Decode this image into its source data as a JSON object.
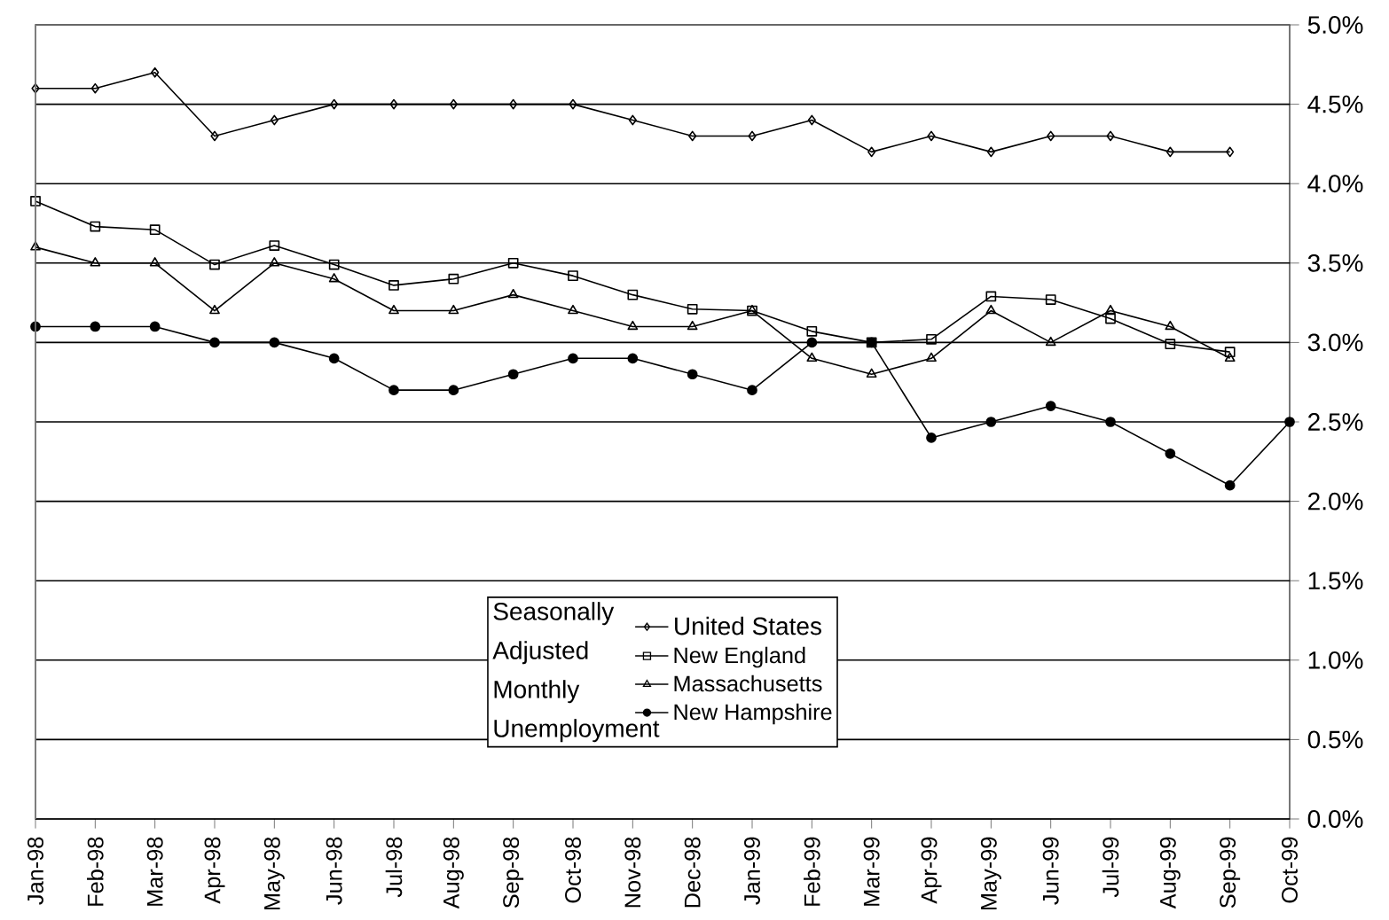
{
  "chart_data": {
    "type": "line",
    "categories": [
      "Jan-98",
      "Feb-98",
      "Mar-98",
      "Apr-98",
      "May-98",
      "Jun-98",
      "Jul-98",
      "Aug-98",
      "Sep-98",
      "Oct-98",
      "Nov-98",
      "Dec-98",
      "Jan-99",
      "Feb-99",
      "Mar-99",
      "Apr-99",
      "May-99",
      "Jun-99",
      "Jul-99",
      "Aug-99",
      "Sep-99",
      "Oct-99"
    ],
    "series": [
      {
        "name": "United States",
        "color": "#000000",
        "marker": "diamond",
        "values": [
          4.6,
          4.6,
          4.7,
          4.3,
          4.4,
          4.5,
          4.5,
          4.5,
          4.5,
          4.5,
          4.4,
          4.3,
          4.3,
          4.4,
          4.2,
          4.3,
          4.2,
          4.3,
          4.3,
          4.2,
          4.2,
          null
        ]
      },
      {
        "name": "New England",
        "color": "#000000",
        "marker": "square",
        "values": [
          3.89,
          3.73,
          3.71,
          3.49,
          3.61,
          3.49,
          3.36,
          3.4,
          3.5,
          3.42,
          3.3,
          3.21,
          3.2,
          3.07,
          3.0,
          3.02,
          3.29,
          3.27,
          3.15,
          2.99,
          2.94,
          null
        ]
      },
      {
        "name": "Massachusetts",
        "color": "#000000",
        "marker": "triangle",
        "values": [
          3.6,
          3.5,
          3.5,
          3.2,
          3.5,
          3.4,
          3.2,
          3.2,
          3.3,
          3.2,
          3.1,
          3.1,
          3.2,
          2.9,
          2.8,
          2.9,
          3.2,
          3.0,
          3.2,
          3.1,
          2.9,
          null
        ]
      },
      {
        "name": "New Hampshire",
        "color": "#000000",
        "marker": "circle",
        "values": [
          3.1,
          3.1,
          3.1,
          3.0,
          3.0,
          2.9,
          2.7,
          2.7,
          2.8,
          2.9,
          2.9,
          2.8,
          2.7,
          3.0,
          3.0,
          2.4,
          2.5,
          2.6,
          2.5,
          2.3,
          2.1,
          2.5
        ]
      }
    ],
    "legend_title": "Seasonally Adjusted Monthly Unemployment",
    "legend": "bottom",
    "grid": "y",
    "ylim": [
      0,
      5
    ],
    "yticks": [
      {
        "value": 0,
        "label": "0.0%"
      },
      {
        "value": 0.5,
        "label": "0.5%"
      },
      {
        "value": 1,
        "label": "1.0%"
      },
      {
        "value": 1.5,
        "label": "1.5%"
      },
      {
        "value": 2,
        "label": "2.0%"
      },
      {
        "value": 2.5,
        "label": "2.5%"
      },
      {
        "value": 3,
        "label": "3.0%"
      },
      {
        "value": 3.5,
        "label": "3.5%"
      },
      {
        "value": 4,
        "label": "4.0%"
      },
      {
        "value": 4.5,
        "label": "4.5%"
      },
      {
        "value": 5,
        "label": "5.0%"
      }
    ],
    "line_style": "solid"
  }
}
